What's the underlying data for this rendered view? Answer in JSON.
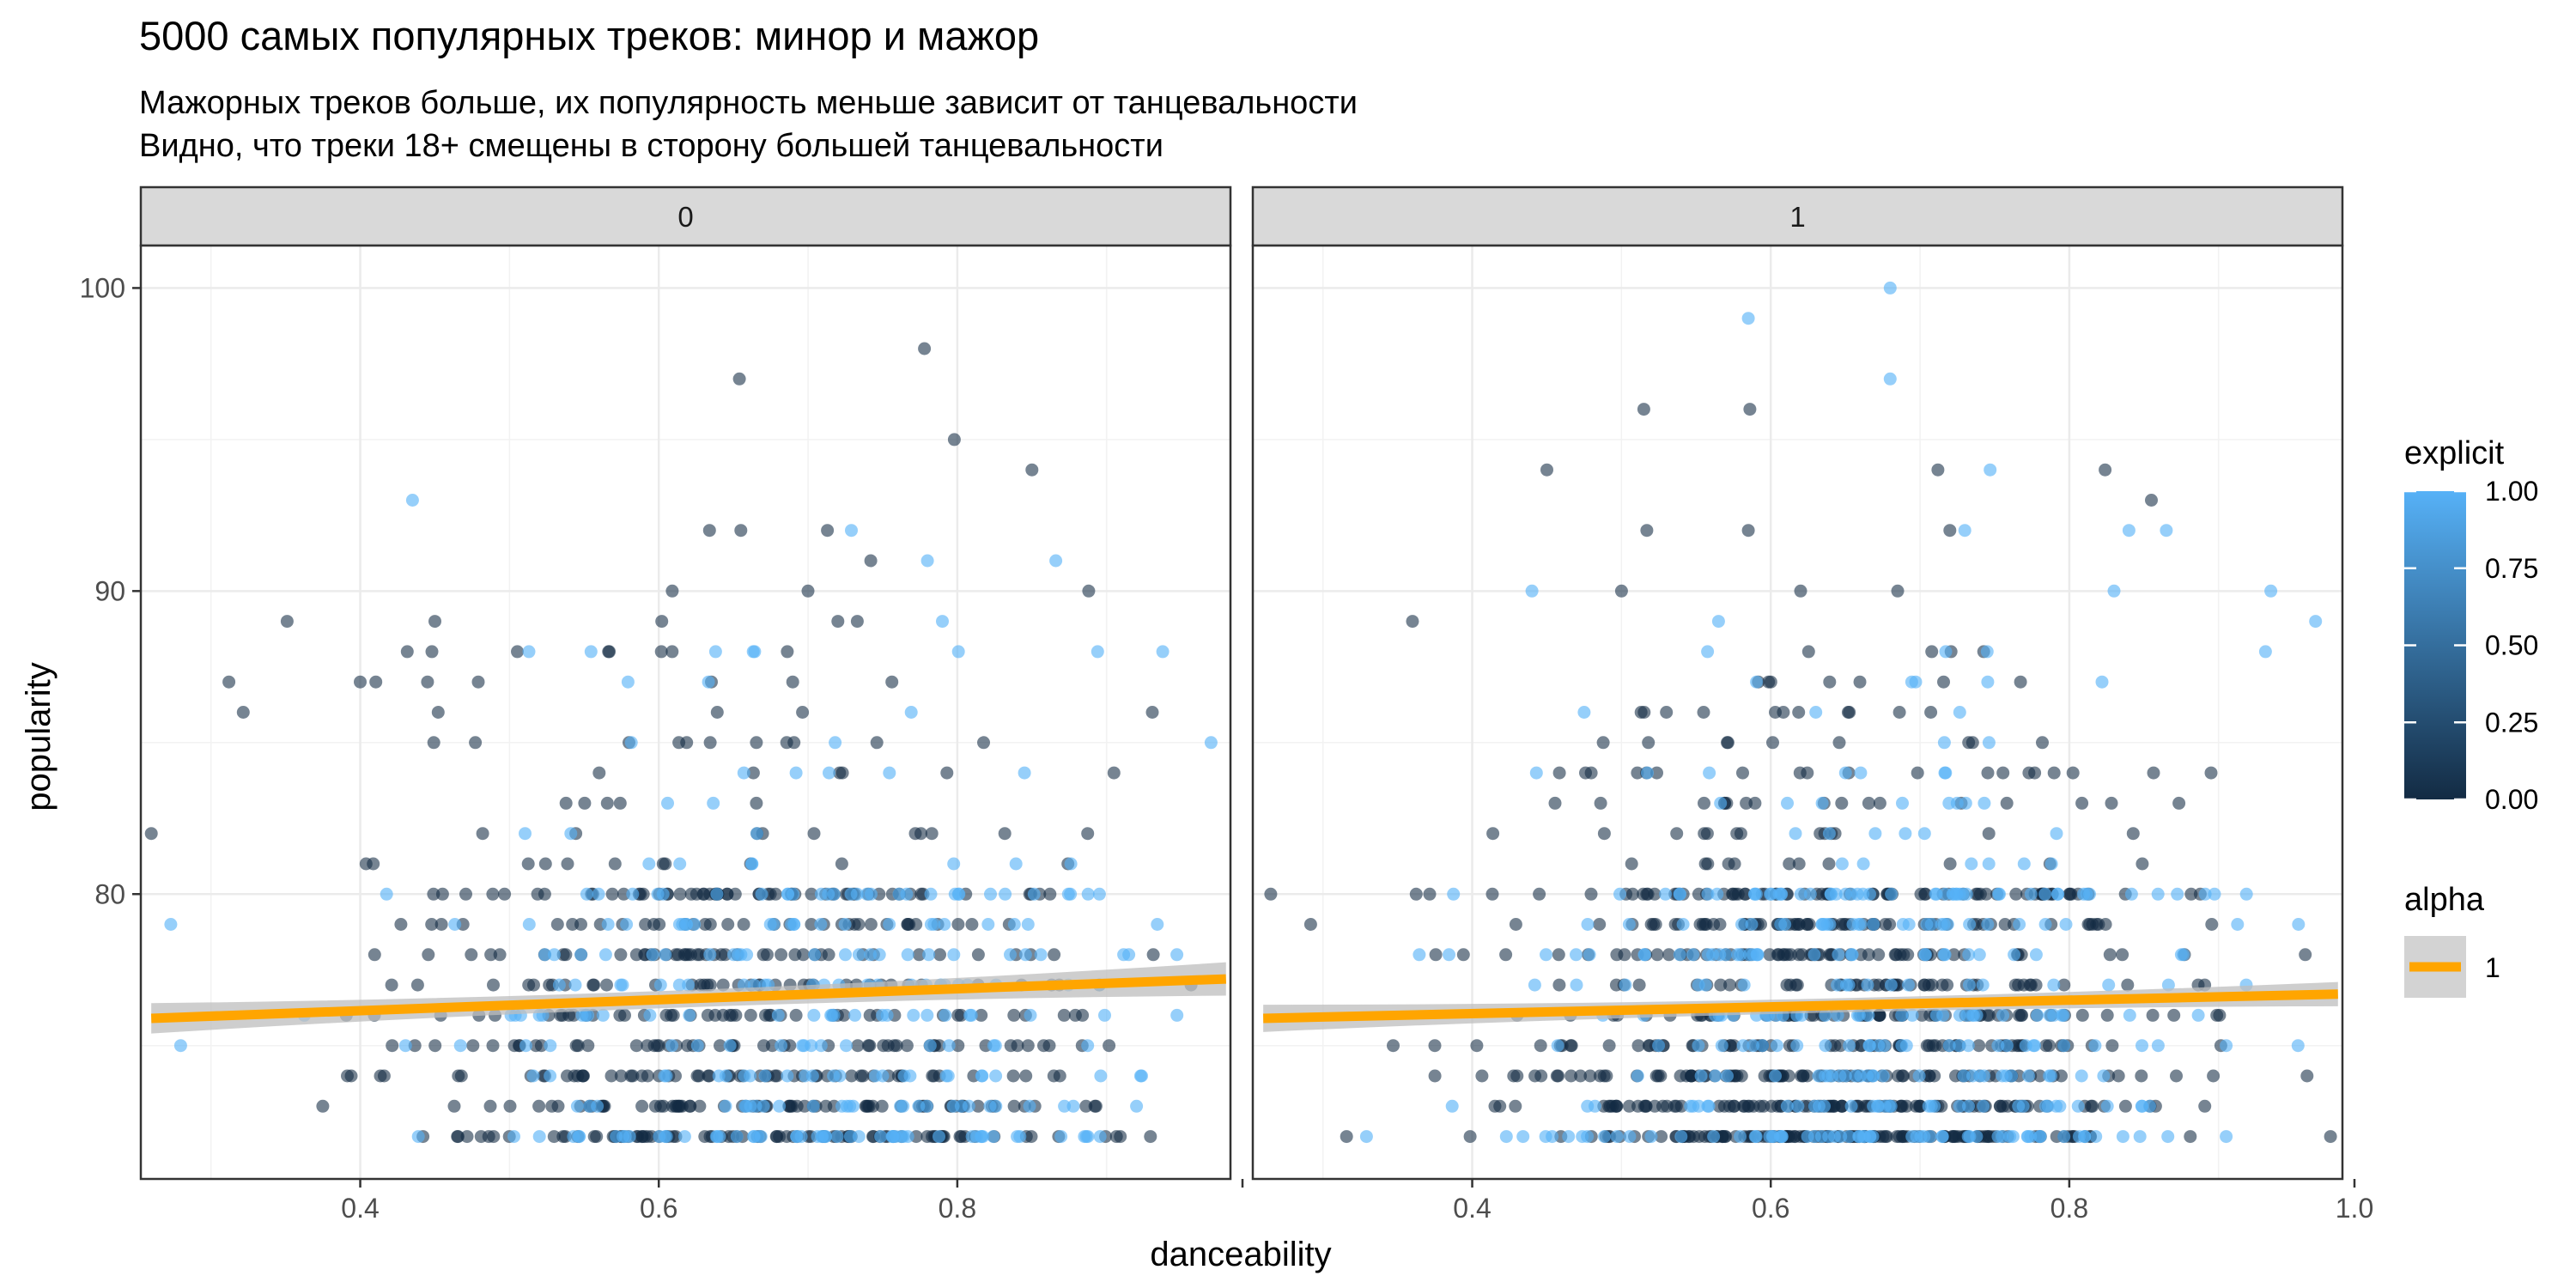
{
  "chart_data": {
    "type": "scatter",
    "title": "5000 самых популярных треков: минор и мажор",
    "subtitle_line1": "Мажорных треков больше, их популярность меньше зависит от танцевальности",
    "subtitle_line2": "Видно, что треки 18+ смещены в сторону большей танцевальности",
    "xlabel": "danceability",
    "ylabel": "popularity",
    "x_ticks": [
      "0.4",
      "0.6",
      "0.8",
      "1.0"
    ],
    "x_tick_values": [
      0.4,
      0.6,
      0.8,
      1.0
    ],
    "y_ticks": [
      "80",
      "90",
      "100"
    ],
    "y_tick_values": [
      80,
      90,
      100
    ],
    "xlim": [
      0.253,
      0.983
    ],
    "ylim": [
      70.6,
      101.4
    ],
    "grid": true,
    "colors": {
      "explicit_low": "#132B43",
      "explicit_high": "#56B1F7",
      "trend": "#FFA500",
      "ribbon": "#BEBEBE",
      "strip": "#D9D9D9"
    },
    "panels": [
      {
        "label": "0",
        "trend": {
          "x": [
            0.26,
            0.98
          ],
          "y": [
            75.9,
            77.2
          ],
          "se_left": 0.5,
          "se_right": 0.55
        },
        "outliers": [
          {
            "x": 0.435,
            "y": 93,
            "e": 1
          },
          {
            "x": 0.654,
            "y": 97,
            "e": 0
          },
          {
            "x": 0.778,
            "y": 98,
            "e": 0
          },
          {
            "x": 0.798,
            "y": 95,
            "e": 0
          },
          {
            "x": 0.85,
            "y": 94,
            "e": 0
          },
          {
            "x": 0.634,
            "y": 92,
            "e": 0
          },
          {
            "x": 0.655,
            "y": 92,
            "e": 0
          },
          {
            "x": 0.713,
            "y": 92,
            "e": 0
          },
          {
            "x": 0.729,
            "y": 92,
            "e": 1
          },
          {
            "x": 0.742,
            "y": 91,
            "e": 0
          },
          {
            "x": 0.78,
            "y": 91,
            "e": 1
          },
          {
            "x": 0.866,
            "y": 91,
            "e": 1
          },
          {
            "x": 0.609,
            "y": 90,
            "e": 0
          },
          {
            "x": 0.7,
            "y": 90,
            "e": 0
          },
          {
            "x": 0.888,
            "y": 90,
            "e": 0
          },
          {
            "x": 0.351,
            "y": 89,
            "e": 0
          },
          {
            "x": 0.45,
            "y": 89,
            "e": 0
          },
          {
            "x": 0.602,
            "y": 89,
            "e": 0
          },
          {
            "x": 0.72,
            "y": 89,
            "e": 0
          },
          {
            "x": 0.733,
            "y": 89,
            "e": 0
          },
          {
            "x": 0.79,
            "y": 89,
            "e": 1
          },
          {
            "x": 0.448,
            "y": 88,
            "e": 0
          },
          {
            "x": 0.513,
            "y": 88,
            "e": 1
          },
          {
            "x": 0.894,
            "y": 88,
            "e": 1
          },
          {
            "x": 0.312,
            "y": 87,
            "e": 0
          },
          {
            "x": 0.4,
            "y": 87,
            "e": 0
          },
          {
            "x": 0.97,
            "y": 85,
            "e": 1
          },
          {
            "x": 0.26,
            "y": 82,
            "e": 0
          }
        ],
        "clusters": [
          {
            "cx": 0.64,
            "sd": 0.11,
            "n": 620,
            "e": 0.26
          },
          {
            "cx": 0.75,
            "sd": 0.09,
            "n": 230,
            "e": 0.6
          }
        ]
      },
      {
        "label": "1",
        "trend": {
          "x": [
            0.26,
            0.98
          ],
          "y": [
            75.9,
            76.7
          ],
          "se_left": 0.45,
          "se_right": 0.4
        },
        "outliers": [
          {
            "x": 0.68,
            "y": 100,
            "e": 1
          },
          {
            "x": 0.585,
            "y": 99,
            "e": 1
          },
          {
            "x": 0.68,
            "y": 97,
            "e": 1
          },
          {
            "x": 0.515,
            "y": 96,
            "e": 0
          },
          {
            "x": 0.586,
            "y": 96,
            "e": 0
          },
          {
            "x": 0.45,
            "y": 94,
            "e": 0
          },
          {
            "x": 0.712,
            "y": 94,
            "e": 0
          },
          {
            "x": 0.747,
            "y": 94,
            "e": 1
          },
          {
            "x": 0.824,
            "y": 94,
            "e": 0
          },
          {
            "x": 0.855,
            "y": 93,
            "e": 0
          },
          {
            "x": 0.72,
            "y": 92,
            "e": 0
          },
          {
            "x": 0.73,
            "y": 92,
            "e": 1
          },
          {
            "x": 0.84,
            "y": 92,
            "e": 1
          },
          {
            "x": 0.865,
            "y": 92,
            "e": 1
          },
          {
            "x": 0.585,
            "y": 92,
            "e": 0
          },
          {
            "x": 0.517,
            "y": 92,
            "e": 0
          },
          {
            "x": 0.935,
            "y": 90,
            "e": 1
          },
          {
            "x": 0.44,
            "y": 90,
            "e": 1
          },
          {
            "x": 0.5,
            "y": 90,
            "e": 0
          },
          {
            "x": 0.62,
            "y": 90,
            "e": 0
          },
          {
            "x": 0.685,
            "y": 90,
            "e": 0
          },
          {
            "x": 0.83,
            "y": 90,
            "e": 1
          },
          {
            "x": 0.36,
            "y": 89,
            "e": 0
          },
          {
            "x": 0.965,
            "y": 89,
            "e": 1
          },
          {
            "x": 0.565,
            "y": 89,
            "e": 1
          },
          {
            "x": 0.975,
            "y": 72,
            "e": 0
          },
          {
            "x": 0.265,
            "y": 80,
            "e": 0
          }
        ],
        "clusters": [
          {
            "cx": 0.63,
            "sd": 0.1,
            "n": 880,
            "e": 0.22
          },
          {
            "cx": 0.72,
            "sd": 0.1,
            "n": 300,
            "e": 0.55
          }
        ]
      }
    ],
    "legend": {
      "explicit_title": "explicit",
      "explicit_ticks": [
        "1.00",
        "0.75",
        "0.50",
        "0.25",
        "0.00"
      ],
      "explicit_tick_values": [
        1.0,
        0.75,
        0.5,
        0.25,
        0.0
      ],
      "alpha_title": "alpha",
      "alpha_label": "1",
      "placement": "right"
    }
  }
}
